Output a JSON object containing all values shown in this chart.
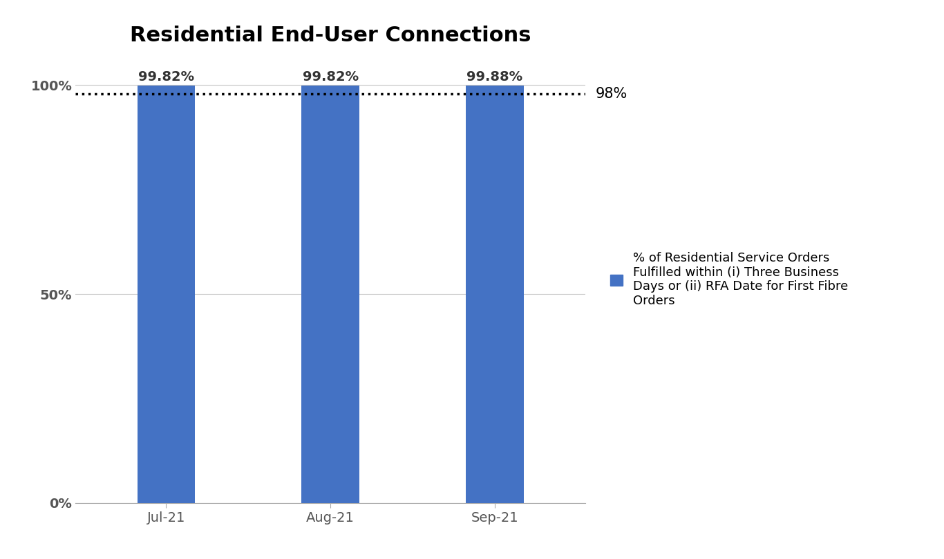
{
  "title": "Residential End-User Connections",
  "categories": [
    "Jul-21",
    "Aug-21",
    "Sep-21"
  ],
  "values": [
    99.82,
    99.82,
    99.88
  ],
  "bar_color": "#4472C4",
  "bar_labels": [
    "99.82%",
    "99.82%",
    "99.88%"
  ],
  "yticks": [
    0,
    50,
    100
  ],
  "ytick_labels": [
    "0%",
    "50%",
    "100%"
  ],
  "ylim": [
    0,
    107
  ],
  "threshold_value": 98,
  "threshold_label": "98%",
  "threshold_color": "#000000",
  "legend_label": "% of Residential Service Orders\nFulfilled within (i) Three Business\nDays or (ii) RFA Date for First Fibre\nOrders",
  "background_color": "#ffffff",
  "grid_color": "#c8c8c8",
  "title_fontsize": 22,
  "tick_fontsize": 14,
  "bar_label_fontsize": 14,
  "legend_fontsize": 13,
  "threshold_label_fontsize": 15,
  "bar_width": 0.35
}
